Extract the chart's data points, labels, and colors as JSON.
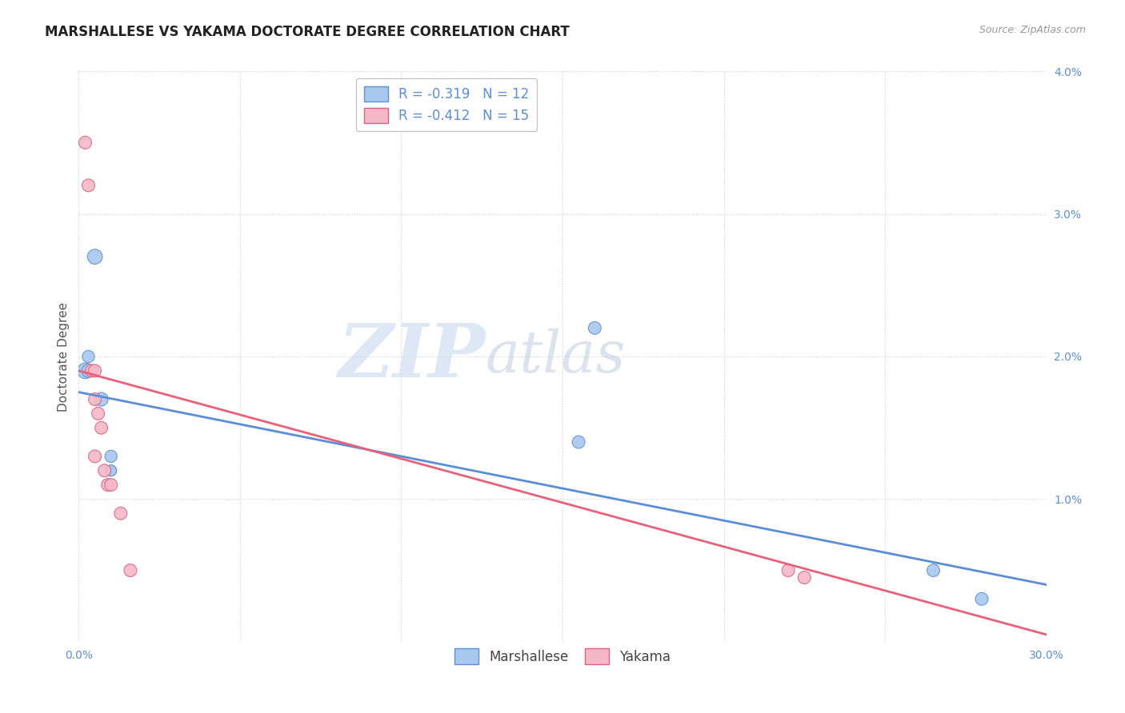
{
  "title": "MARSHALLESE VS YAKAMA DOCTORATE DEGREE CORRELATION CHART",
  "source": "Source: ZipAtlas.com",
  "ylabel": "Doctorate Degree",
  "xlim": [
    0,
    0.3
  ],
  "ylim": [
    0,
    0.04
  ],
  "xticks": [
    0.0,
    0.05,
    0.1,
    0.15,
    0.2,
    0.25,
    0.3
  ],
  "yticks": [
    0.0,
    0.01,
    0.02,
    0.03,
    0.04
  ],
  "marshallese_color": "#A8C8F0",
  "yakama_color": "#F5B8C8",
  "marshallese_edge_color": "#6090D0",
  "yakama_edge_color": "#E06080",
  "marshallese_line_color": "#5B8DD9",
  "yakama_line_color": "#E8607A",
  "legend_r_marshallese": "R = -0.319",
  "legend_n_marshallese": "N = 12",
  "legend_r_yakama": "R = -0.412",
  "legend_n_yakama": "N = 15",
  "marshallese_x": [
    0.002,
    0.003,
    0.003,
    0.005,
    0.007,
    0.01,
    0.01,
    0.01,
    0.155,
    0.16,
    0.265,
    0.28
  ],
  "marshallese_y": [
    0.019,
    0.019,
    0.02,
    0.027,
    0.017,
    0.013,
    0.012,
    0.012,
    0.014,
    0.022,
    0.005,
    0.003
  ],
  "marshallese_size": [
    200,
    150,
    120,
    180,
    150,
    120,
    100,
    100,
    130,
    130,
    130,
    130
  ],
  "yakama_x": [
    0.002,
    0.003,
    0.004,
    0.005,
    0.005,
    0.005,
    0.006,
    0.007,
    0.008,
    0.009,
    0.01,
    0.013,
    0.016,
    0.22,
    0.225
  ],
  "yakama_y": [
    0.035,
    0.032,
    0.019,
    0.019,
    0.017,
    0.013,
    0.016,
    0.015,
    0.012,
    0.011,
    0.011,
    0.009,
    0.005,
    0.005,
    0.0045
  ],
  "yakama_size": [
    130,
    130,
    130,
    130,
    130,
    130,
    130,
    130,
    130,
    130,
    130,
    130,
    130,
    130,
    130
  ],
  "marshallese_trend_x": [
    0.0,
    0.3
  ],
  "marshallese_trend_y": [
    0.0175,
    0.004
  ],
  "yakama_trend_x": [
    0.0,
    0.3
  ],
  "yakama_trend_y": [
    0.019,
    0.0005
  ],
  "watermark_zip": "ZIP",
  "watermark_atlas": "atlas",
  "background_color": "#FFFFFF",
  "grid_color": "#CCCCCC",
  "title_fontsize": 12,
  "axis_label_fontsize": 11,
  "tick_fontsize": 10,
  "tick_color": "#5B8DD9",
  "legend_fontsize": 12
}
